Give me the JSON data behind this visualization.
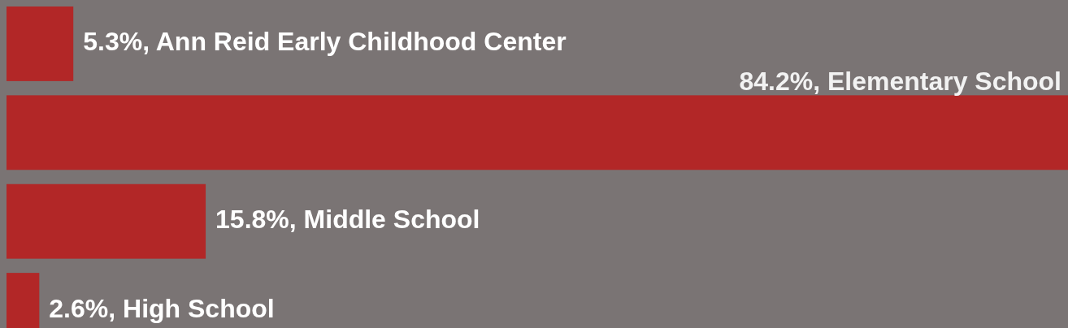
{
  "chart_data": {
    "type": "bar",
    "orientation": "horizontal",
    "categories": [
      null,
      null,
      null,
      null
    ],
    "values": [
      5.3,
      84.2,
      15.8,
      2.6
    ],
    "value_labels": [
      "5.3%, Ann Reid Early Childhood Center",
      "84.2%, Elementary School",
      "15.8%, Middle School",
      "2.6%, High School"
    ],
    "color": "#b22727"
  }
}
